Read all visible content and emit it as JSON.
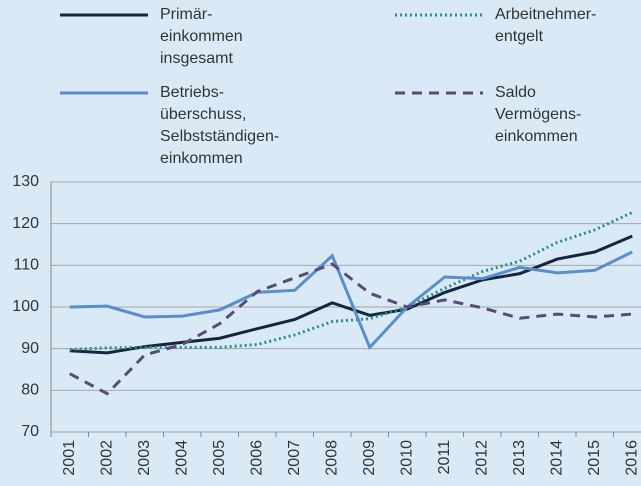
{
  "chart_data": {
    "type": "line",
    "categories": [
      "2001",
      "2002",
      "2003",
      "2004",
      "2005",
      "2006",
      "2007",
      "2008",
      "2009",
      "2010",
      "2011",
      "2012",
      "2013",
      "2014",
      "2015",
      "2016"
    ],
    "series": [
      {
        "name": "Primär-\neinkommen\ninsgesamt",
        "color": "#17263f",
        "style": "solid",
        "values": [
          89.5,
          89,
          90.5,
          91.5,
          92.5,
          94.8,
          97,
          101,
          98,
          99.5,
          103.5,
          106.5,
          108,
          111.5,
          113.2,
          117
        ]
      },
      {
        "name": "Arbeitnehmer-\nentgelt",
        "color": "#2a8a8c",
        "style": "dotted",
        "values": [
          89.8,
          90.2,
          90.3,
          90.3,
          90.3,
          91,
          93.3,
          96.5,
          97.2,
          100,
          104.5,
          108.5,
          111,
          115.5,
          118.5,
          122.7
        ]
      },
      {
        "name": "Betriebs-\nüberschuss,\nSelbstständigen-\neinkommen",
        "color": "#5b8ec9",
        "style": "solid",
        "values": [
          100,
          100.2,
          97.6,
          97.8,
          99.3,
          103.5,
          104,
          112.3,
          90.3,
          100,
          107.2,
          106.8,
          109.5,
          108.2,
          108.8,
          113.2
        ]
      },
      {
        "name": "Saldo\nVermögens-\neinkommen",
        "color": "#5a4a7a",
        "style": "dashed",
        "values": [
          84,
          79.2,
          88.5,
          91,
          96,
          103.7,
          107,
          110.3,
          103.3,
          100,
          101.7,
          99.8,
          97.3,
          98.3,
          97.6,
          98.3
        ]
      }
    ],
    "ylim": [
      70,
      130
    ],
    "yticks": [
      70,
      80,
      90,
      100,
      110,
      120,
      130
    ],
    "grid": true
  }
}
